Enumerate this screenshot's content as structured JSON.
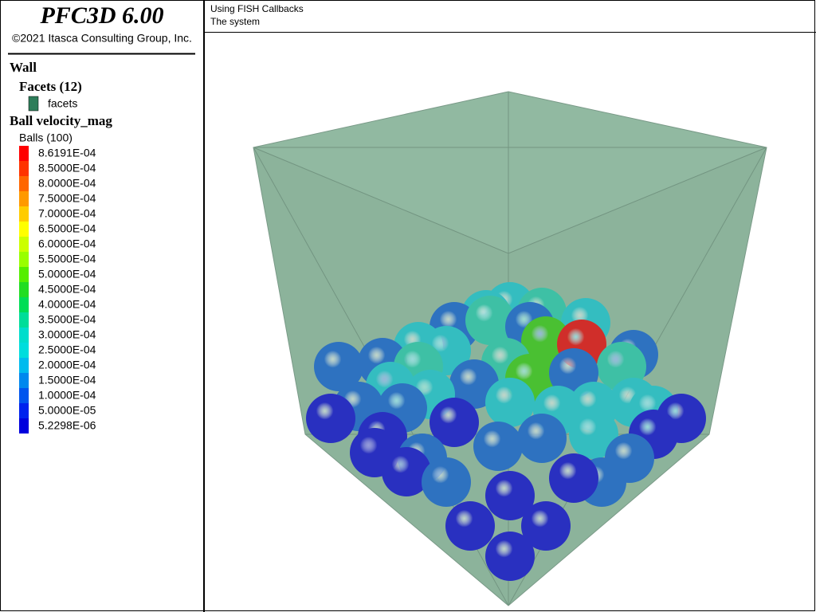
{
  "header": {
    "title": "PFC3D 6.00",
    "copyright": "©2021 Itasca Consulting Group, Inc."
  },
  "legend": {
    "wall_heading": "Wall",
    "facets_heading": "Facets (12)",
    "facets_item": {
      "label": "facets",
      "color": "#2e7d5a"
    },
    "ball_heading": "Ball velocity_mag",
    "balls_heading": "Balls (100)",
    "scale": [
      {
        "label": "8.6191E-04",
        "color": "#ff0000"
      },
      {
        "label": "8.5000E-04",
        "color": "#ff3300"
      },
      {
        "label": "8.0000E-04",
        "color": "#ff6600"
      },
      {
        "label": "7.5000E-04",
        "color": "#ff9900"
      },
      {
        "label": "7.0000E-04",
        "color": "#ffcc00"
      },
      {
        "label": "6.5000E-04",
        "color": "#ffff00"
      },
      {
        "label": "6.0000E-04",
        "color": "#ccff00"
      },
      {
        "label": "5.5000E-04",
        "color": "#99ff00"
      },
      {
        "label": "5.0000E-04",
        "color": "#55ee00"
      },
      {
        "label": "4.5000E-04",
        "color": "#22dd22"
      },
      {
        "label": "4.0000E-04",
        "color": "#00dd55"
      },
      {
        "label": "3.5000E-04",
        "color": "#00dd99"
      },
      {
        "label": "3.0000E-04",
        "color": "#00ddcc"
      },
      {
        "label": "2.5000E-04",
        "color": "#00dddd"
      },
      {
        "label": "2.0000E-04",
        "color": "#00bbee"
      },
      {
        "label": "1.5000E-04",
        "color": "#0088ee"
      },
      {
        "label": "1.0000E-04",
        "color": "#0055ee"
      },
      {
        "label": "5.0000E-05",
        "color": "#0022ee"
      },
      {
        "label": "5.2298E-06",
        "color": "#0000dd"
      }
    ]
  },
  "view": {
    "title_line1": "Using FISH Callbacks",
    "title_line2": "The system"
  }
}
